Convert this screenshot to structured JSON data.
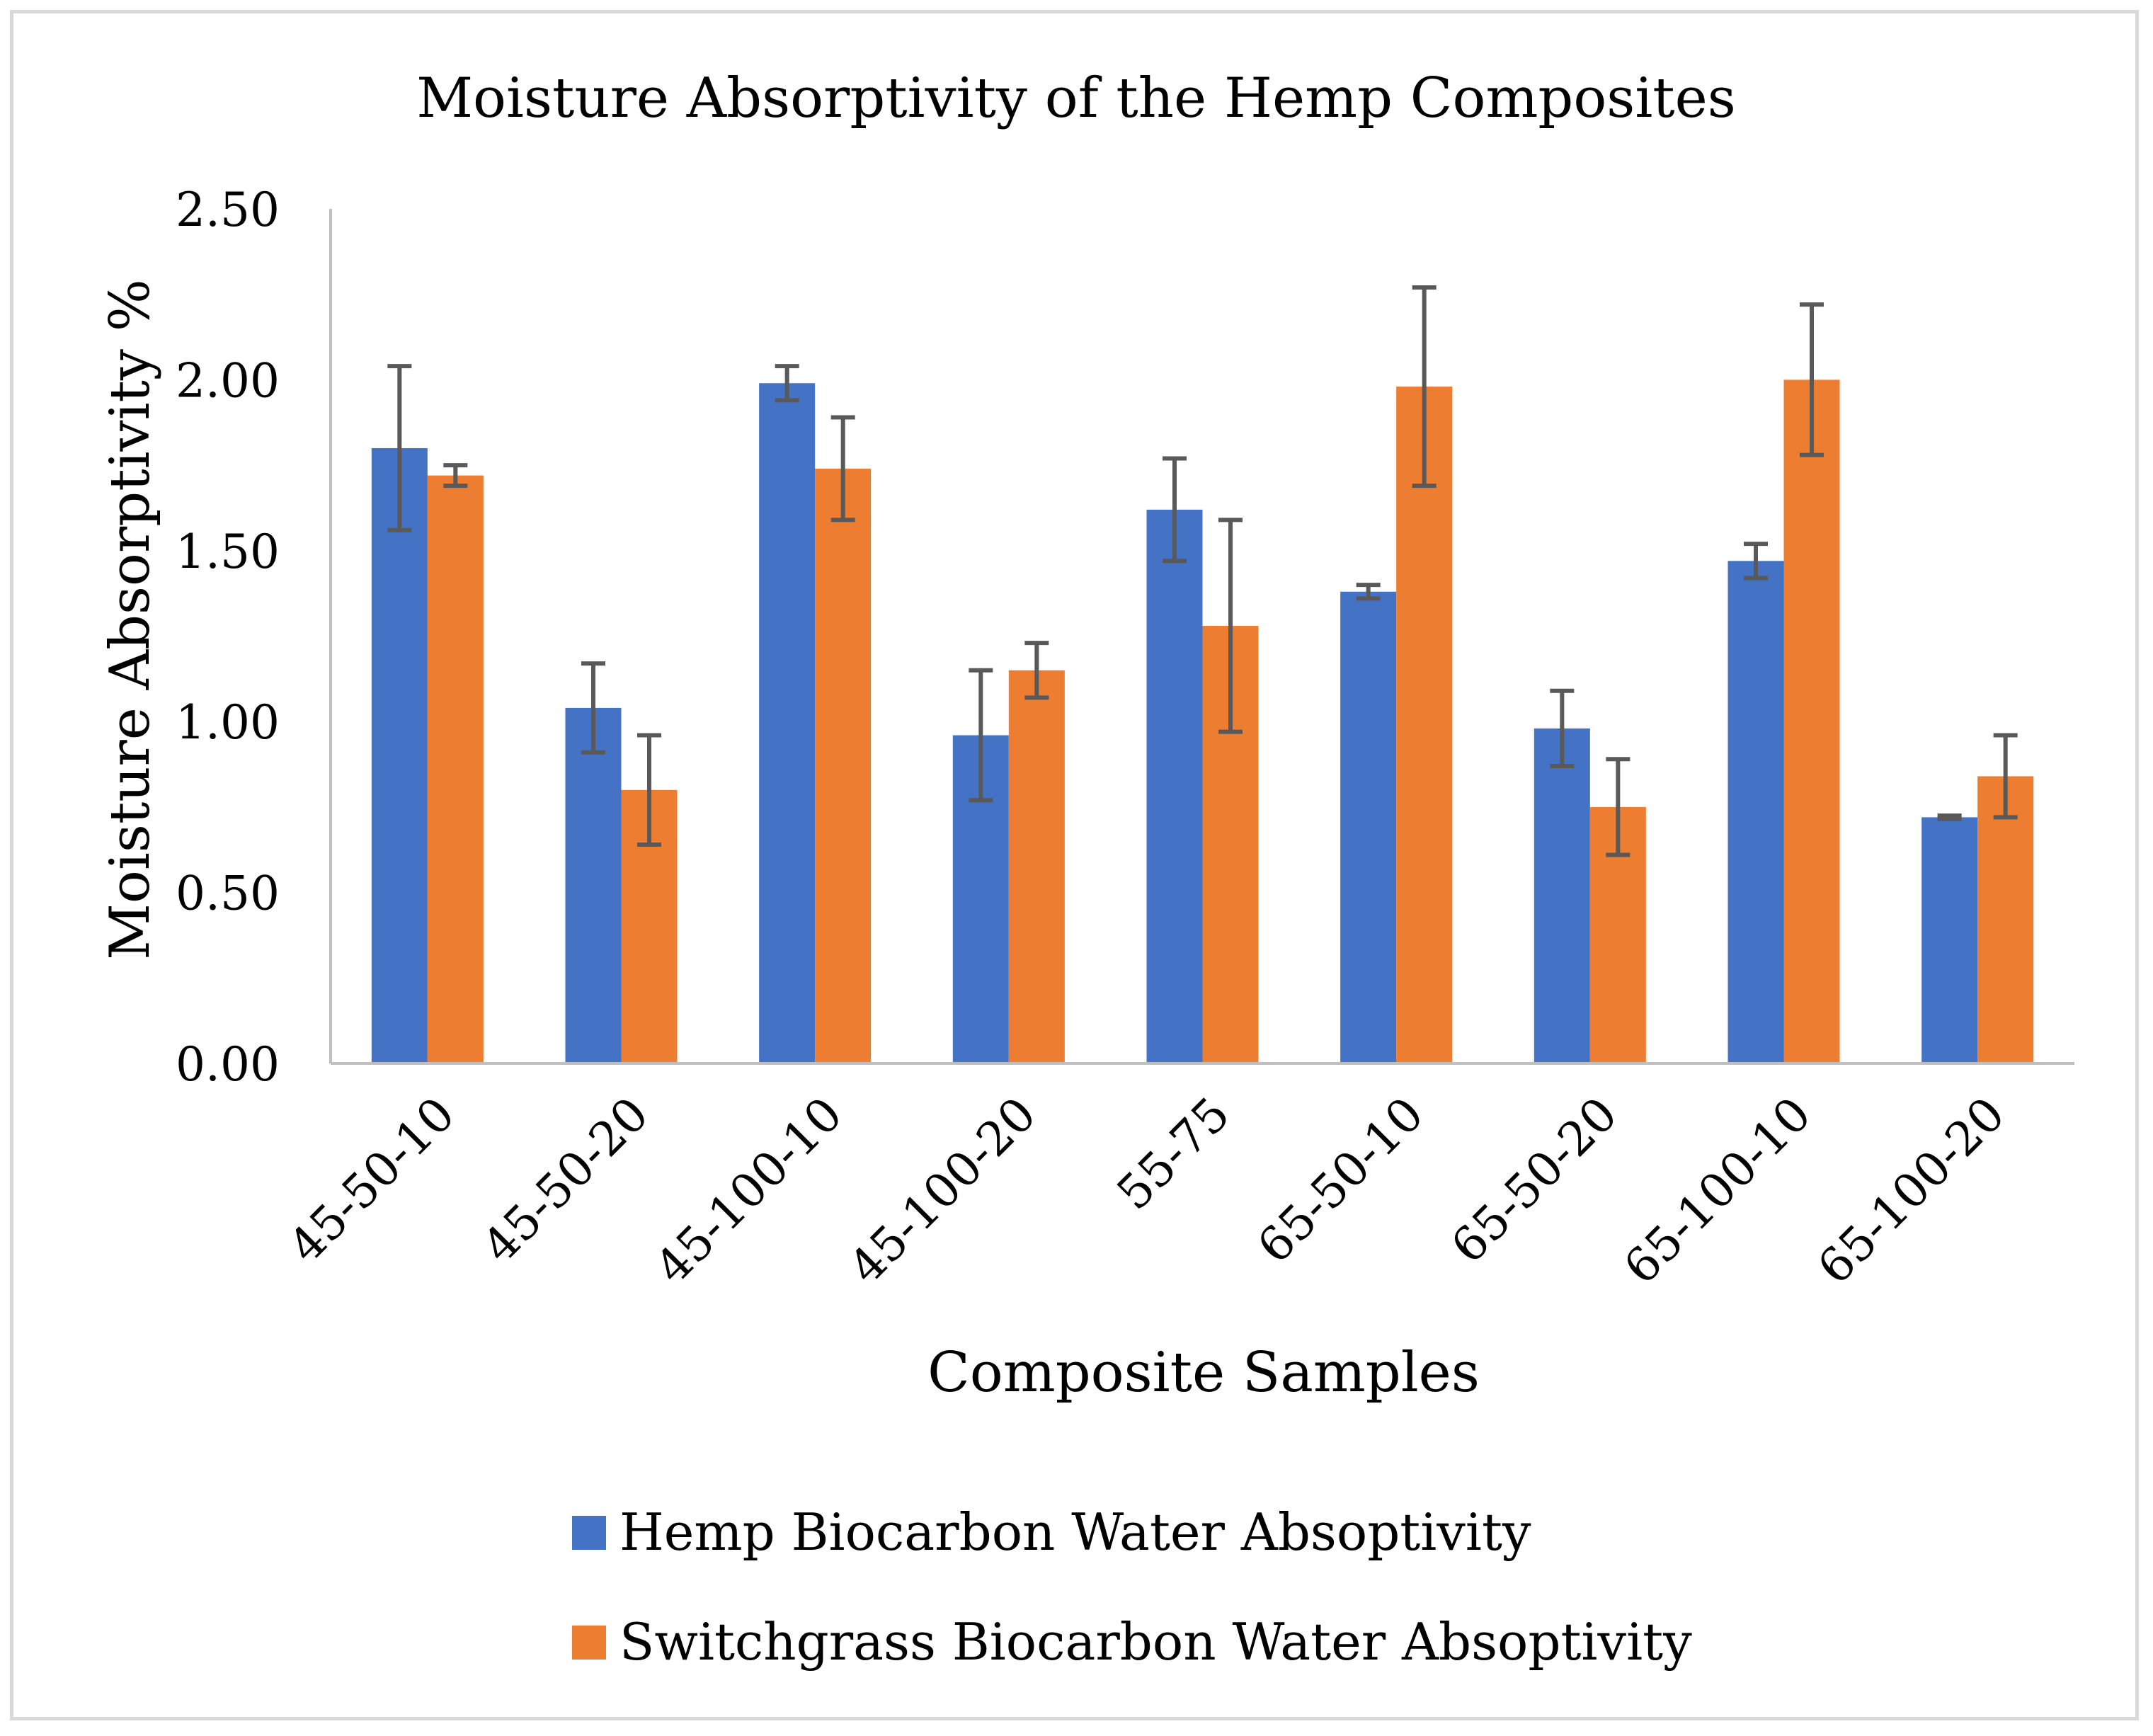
{
  "chart_data": {
    "type": "bar",
    "title": "Moisture Absorptivity of the Hemp Composites",
    "xlabel": "Composite Samples",
    "ylabel": "Moisture Absorptivity %",
    "ylim": [
      0,
      2.5
    ],
    "yticks": [
      "0.00",
      "0.50",
      "1.00",
      "1.50",
      "2.00",
      "2.50"
    ],
    "grid": false,
    "legend_position": "bottom",
    "categories": [
      "45-50-10",
      "45-50-20",
      "45-100-10",
      "45-100-20",
      "55-75",
      "65-50-10",
      "65-50-20",
      "65-100-10",
      "65-100-20"
    ],
    "series": [
      {
        "name": "Hemp Biocarbon Water Absoptivity",
        "color": "#4472c4",
        "values": [
          1.8,
          1.04,
          1.99,
          0.96,
          1.62,
          1.38,
          0.98,
          1.47,
          0.72
        ],
        "errors": [
          0.24,
          0.13,
          0.05,
          0.19,
          0.15,
          0.02,
          0.11,
          0.05,
          0.005
        ]
      },
      {
        "name": "Switchgrass Biocarbon Water Absoptivity",
        "color": "#ed7d31",
        "values": [
          1.72,
          0.8,
          1.74,
          1.15,
          1.28,
          1.98,
          0.75,
          2.0,
          0.84
        ],
        "errors": [
          0.03,
          0.16,
          0.15,
          0.08,
          0.31,
          0.29,
          0.14,
          0.22,
          0.12
        ]
      }
    ]
  }
}
